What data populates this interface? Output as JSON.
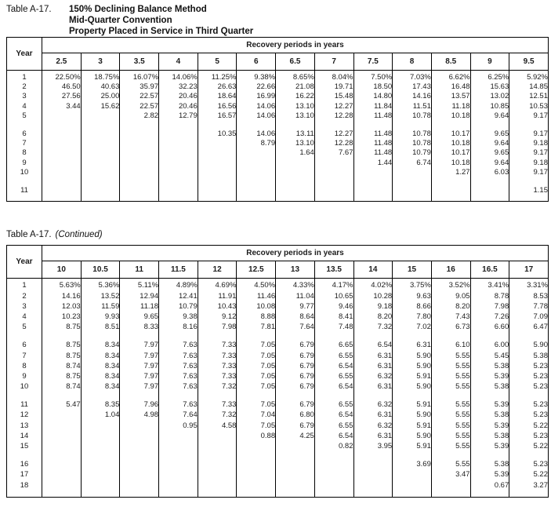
{
  "table1": {
    "label": "Table A-17.",
    "title_lines": [
      "150% Declining Balance Method",
      "Mid-Quarter Convention",
      "Property Placed in Service in Third Quarter"
    ],
    "year_header": "Year",
    "periods_header": "Recovery periods in years",
    "columns": [
      "2.5",
      "3",
      "3.5",
      "4",
      "5",
      "6",
      "6.5",
      "7",
      "7.5",
      "8",
      "8.5",
      "9",
      "9.5"
    ],
    "row_groups": [
      [
        {
          "year": "1",
          "values": [
            "22.50%",
            "18.75%",
            "16.07%",
            "14.06%",
            "11.25%",
            "9.38%",
            "8.65%",
            "8.04%",
            "7.50%",
            "7.03%",
            "6.62%",
            "6.25%",
            "5.92%"
          ]
        },
        {
          "year": "2",
          "values": [
            "46.50",
            "40.63",
            "35.97",
            "32.23",
            "26.63",
            "22.66",
            "21.08",
            "19.71",
            "18.50",
            "17.43",
            "16.48",
            "15.63",
            "14.85"
          ]
        },
        {
          "year": "3",
          "values": [
            "27.56",
            "25.00",
            "22.57",
            "20.46",
            "18.64",
            "16.99",
            "16.22",
            "15.48",
            "14.80",
            "14.16",
            "13.57",
            "13.02",
            "12.51"
          ]
        },
        {
          "year": "4",
          "values": [
            "3.44",
            "15.62",
            "22.57",
            "20.46",
            "16.56",
            "14.06",
            "13.10",
            "12.27",
            "11.84",
            "11.51",
            "11.18",
            "10.85",
            "10.53"
          ]
        },
        {
          "year": "5",
          "values": [
            "",
            "",
            "2.82",
            "12.79",
            "16.57",
            "14.06",
            "13.10",
            "12.28",
            "11.48",
            "10.78",
            "10.18",
            "9.64",
            "9.17"
          ]
        }
      ],
      [
        {
          "year": "6",
          "values": [
            "",
            "",
            "",
            "",
            "10.35",
            "14.06",
            "13.11",
            "12.27",
            "11.48",
            "10.78",
            "10.17",
            "9.65",
            "9.17"
          ]
        },
        {
          "year": "7",
          "values": [
            "",
            "",
            "",
            "",
            "",
            "8.79",
            "13.10",
            "12.28",
            "11.48",
            "10.78",
            "10.18",
            "9.64",
            "9.18"
          ]
        },
        {
          "year": "8",
          "values": [
            "",
            "",
            "",
            "",
            "",
            "",
            "1.64",
            "7.67",
            "11.48",
            "10.79",
            "10.17",
            "9.65",
            "9.17"
          ]
        },
        {
          "year": "9",
          "values": [
            "",
            "",
            "",
            "",
            "",
            "",
            "",
            "",
            "1.44",
            "6.74",
            "10.18",
            "9.64",
            "9.18"
          ]
        },
        {
          "year": "10",
          "values": [
            "",
            "",
            "",
            "",
            "",
            "",
            "",
            "",
            "",
            "",
            "1.27",
            "6.03",
            "9.17"
          ]
        }
      ],
      [
        {
          "year": "11",
          "values": [
            "",
            "",
            "",
            "",
            "",
            "",
            "",
            "",
            "",
            "",
            "",
            "",
            "1.15"
          ]
        }
      ]
    ]
  },
  "table2": {
    "label": "Table A-17.",
    "continued": "(Continued)",
    "year_header": "Year",
    "periods_header": "Recovery periods in years",
    "columns": [
      "10",
      "10.5",
      "11",
      "11.5",
      "12",
      "12.5",
      "13",
      "13.5",
      "14",
      "15",
      "16",
      "16.5",
      "17"
    ],
    "row_groups": [
      [
        {
          "year": "1",
          "values": [
            "5.63%",
            "5.36%",
            "5.11%",
            "4.89%",
            "4.69%",
            "4.50%",
            "4.33%",
            "4.17%",
            "4.02%",
            "3.75%",
            "3.52%",
            "3.41%",
            "3.31%"
          ]
        },
        {
          "year": "2",
          "values": [
            "14.16",
            "13.52",
            "12.94",
            "12.41",
            "11.91",
            "11.46",
            "11.04",
            "10.65",
            "10.28",
            "9.63",
            "9.05",
            "8.78",
            "8.53"
          ]
        },
        {
          "year": "3",
          "values": [
            "12.03",
            "11.59",
            "11.18",
            "10.79",
            "10.43",
            "10.08",
            "9.77",
            "9.46",
            "9.18",
            "8.66",
            "8.20",
            "7.98",
            "7.78"
          ]
        },
        {
          "year": "4",
          "values": [
            "10.23",
            "9.93",
            "9.65",
            "9.38",
            "9.12",
            "8.88",
            "8.64",
            "8.41",
            "8.20",
            "7.80",
            "7.43",
            "7.26",
            "7.09"
          ]
        },
        {
          "year": "5",
          "values": [
            "8.75",
            "8.51",
            "8.33",
            "8.16",
            "7.98",
            "7.81",
            "7.64",
            "7.48",
            "7.32",
            "7.02",
            "6.73",
            "6.60",
            "6.47"
          ]
        }
      ],
      [
        {
          "year": "6",
          "values": [
            "8.75",
            "8.34",
            "7.97",
            "7.63",
            "7.33",
            "7.05",
            "6.79",
            "6.65",
            "6.54",
            "6.31",
            "6.10",
            "6.00",
            "5.90"
          ]
        },
        {
          "year": "7",
          "values": [
            "8.75",
            "8.34",
            "7.97",
            "7.63",
            "7.33",
            "7.05",
            "6.79",
            "6.55",
            "6.31",
            "5.90",
            "5.55",
            "5.45",
            "5.38"
          ]
        },
        {
          "year": "8",
          "values": [
            "8.74",
            "8.34",
            "7.97",
            "7.63",
            "7.33",
            "7.05",
            "6.79",
            "6.54",
            "6.31",
            "5.90",
            "5.55",
            "5.38",
            "5.23"
          ]
        },
        {
          "year": "9",
          "values": [
            "8.75",
            "8.34",
            "7.97",
            "7.63",
            "7.33",
            "7.05",
            "6.79",
            "6.55",
            "6.32",
            "5.91",
            "5.55",
            "5.39",
            "5.23"
          ]
        },
        {
          "year": "10",
          "values": [
            "8.74",
            "8.34",
            "7.97",
            "7.63",
            "7.32",
            "7.05",
            "6.79",
            "6.54",
            "6.31",
            "5.90",
            "5.55",
            "5.38",
            "5.23"
          ]
        }
      ],
      [
        {
          "year": "11",
          "values": [
            "5.47",
            "8.35",
            "7.96",
            "7.63",
            "7.33",
            "7.05",
            "6.79",
            "6.55",
            "6.32",
            "5.91",
            "5.55",
            "5.39",
            "5.23"
          ]
        },
        {
          "year": "12",
          "values": [
            "",
            "1.04",
            "4.98",
            "7.64",
            "7.32",
            "7.04",
            "6.80",
            "6.54",
            "6.31",
            "5.90",
            "5.55",
            "5.38",
            "5.23"
          ]
        },
        {
          "year": "13",
          "values": [
            "",
            "",
            "",
            "0.95",
            "4.58",
            "7.05",
            "6.79",
            "6.55",
            "6.32",
            "5.91",
            "5.55",
            "5.39",
            "5.22"
          ]
        },
        {
          "year": "14",
          "values": [
            "",
            "",
            "",
            "",
            "",
            "0.88",
            "4.25",
            "6.54",
            "6.31",
            "5.90",
            "5.55",
            "5.38",
            "5.23"
          ]
        },
        {
          "year": "15",
          "values": [
            "",
            "",
            "",
            "",
            "",
            "",
            "",
            "0.82",
            "3.95",
            "5.91",
            "5.55",
            "5.39",
            "5.22"
          ]
        }
      ],
      [
        {
          "year": "16",
          "values": [
            "",
            "",
            "",
            "",
            "",
            "",
            "",
            "",
            "",
            "3.69",
            "5.55",
            "5.38",
            "5.23"
          ]
        },
        {
          "year": "17",
          "values": [
            "",
            "",
            "",
            "",
            "",
            "",
            "",
            "",
            "",
            "",
            "3.47",
            "5.39",
            "5.22"
          ]
        },
        {
          "year": "18",
          "values": [
            "",
            "",
            "",
            "",
            "",
            "",
            "",
            "",
            "",
            "",
            "",
            "0.67",
            "3.27"
          ]
        }
      ]
    ]
  }
}
